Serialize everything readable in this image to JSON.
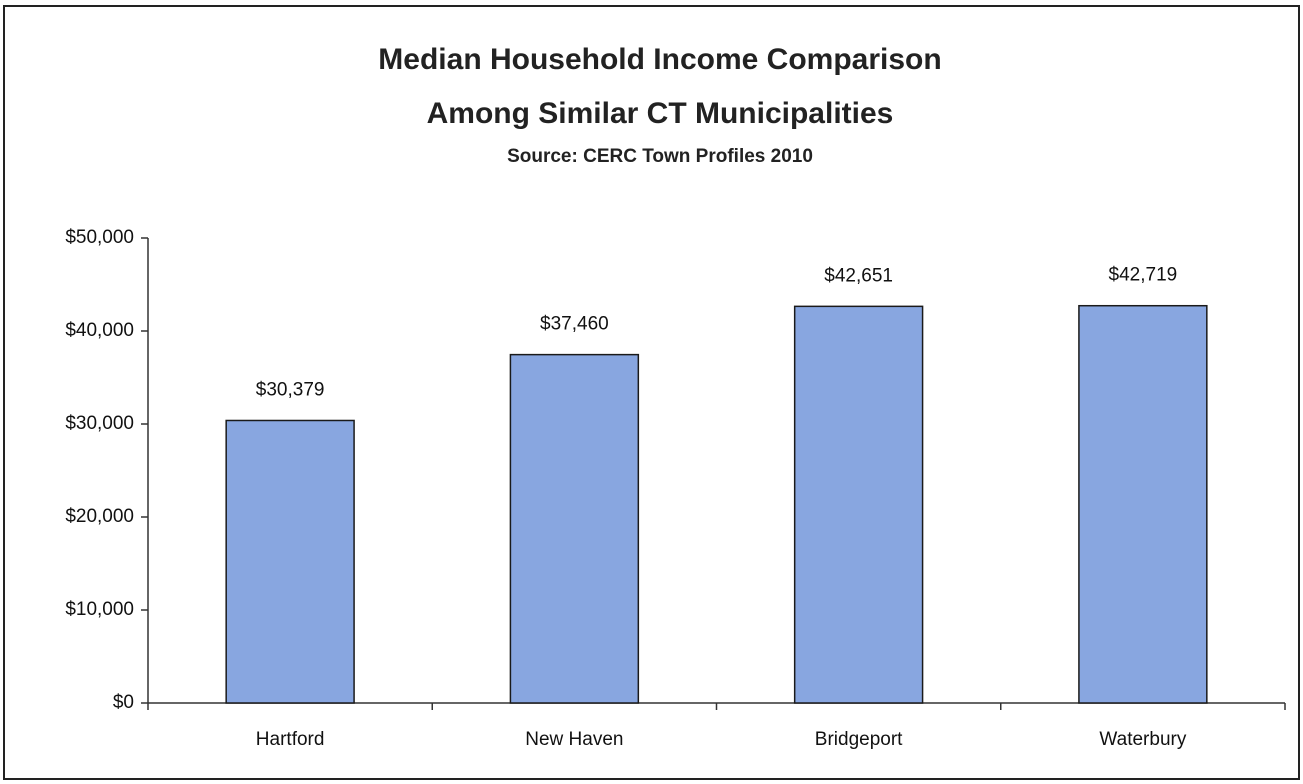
{
  "chart_data": {
    "type": "bar",
    "title": [
      "Median Household Income Comparison",
      "Among Similar CT Municipalities"
    ],
    "subtitle": "Source: CERC Town Profiles 2010",
    "categories": [
      "Hartford",
      "New Haven",
      "Bridgeport",
      "Waterbury"
    ],
    "values": [
      30379,
      37460,
      42651,
      42719
    ],
    "value_labels": [
      "$30,379",
      "$37,460",
      "$42,651",
      "$42,719"
    ],
    "color": "#88a6e0",
    "ylim": [
      0,
      50000
    ],
    "yticks": [
      {
        "value": 0,
        "label": "$0"
      },
      {
        "value": 10000,
        "label": "$10,000"
      },
      {
        "value": 20000,
        "label": "$20,000"
      },
      {
        "value": 30000,
        "label": "$30,000"
      },
      {
        "value": 40000,
        "label": "$40,000"
      },
      {
        "value": 50000,
        "label": "$50,000"
      }
    ],
    "grid": false
  }
}
